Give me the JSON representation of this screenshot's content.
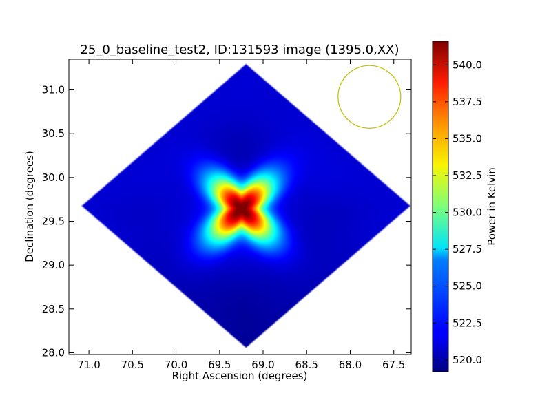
{
  "chart_data": {
    "type": "heatmap",
    "title": "25_0_baseline_test2, ID:131593 image (1395.0,XX)",
    "xlabel": "Right Ascension (degrees)",
    "ylabel": "Declination (degrees)",
    "xlim": [
      71.23,
      67.3
    ],
    "ylim": [
      27.98,
      31.35
    ],
    "x_ticks": [
      71.0,
      70.5,
      70.0,
      69.5,
      69.0,
      68.5,
      68.0,
      67.5
    ],
    "x_tick_labels": [
      "71.0",
      "70.5",
      "70.0",
      "69.5",
      "69.0",
      "68.5",
      "68.0",
      "67.5"
    ],
    "y_ticks": [
      28.0,
      28.5,
      29.0,
      29.5,
      30.0,
      30.5,
      31.0
    ],
    "y_tick_labels": [
      "28.0",
      "28.5",
      "29.0",
      "29.5",
      "30.0",
      "30.5",
      "31.0"
    ],
    "map_center": {
      "ra": 69.2,
      "dec": 29.68
    },
    "map_half_diagonal": {
      "ra": 1.9,
      "dec": 1.63
    },
    "background_level_K": 521.0,
    "peak": {
      "ra": 69.25,
      "dec": 29.65,
      "value_K": 541.5
    },
    "beam_circle": {
      "ra": 67.78,
      "dec": 30.92,
      "radius_deg": 0.36,
      "color": "#bfbf00"
    },
    "colormap": "jet",
    "colorbar": {
      "label": "Power in Kelvin",
      "range": [
        519.2,
        541.6
      ],
      "ticks": [
        520.0,
        522.5,
        525.0,
        527.5,
        530.0,
        532.5,
        535.0,
        537.5,
        540.0
      ],
      "tick_labels": [
        "520.0",
        "522.5",
        "525.0",
        "527.5",
        "530.0",
        "532.5",
        "535.0",
        "537.5",
        "540.0"
      ]
    }
  }
}
